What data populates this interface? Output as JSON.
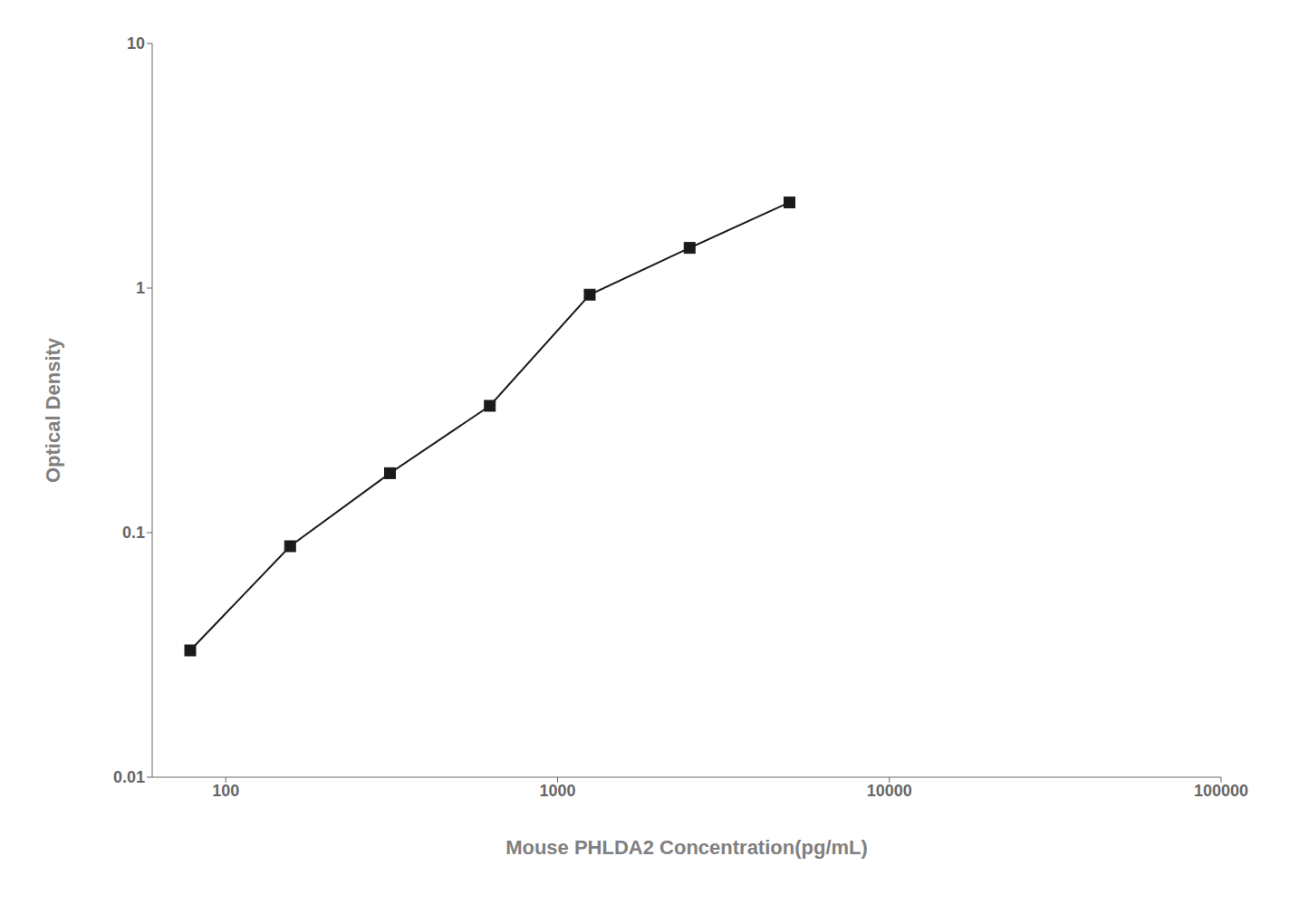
{
  "chart_data": {
    "type": "line",
    "x": [
      78.13,
      156.25,
      312.5,
      625,
      1250,
      2500,
      5000
    ],
    "values": [
      0.033,
      0.088,
      0.175,
      0.33,
      0.94,
      1.46,
      2.24
    ],
    "xlabel": "Mouse PHLDA2 Concentration(pg/mL)",
    "ylabel": "Optical Density",
    "xlim": [
      60,
      100000
    ],
    "ylim": [
      0.01,
      10
    ],
    "xticks": [
      100,
      1000,
      10000,
      100000
    ],
    "yticks": [
      0.01,
      0.1,
      1,
      10
    ],
    "log": true,
    "grid": false,
    "color": "#1a1a1a",
    "marker": "square"
  }
}
